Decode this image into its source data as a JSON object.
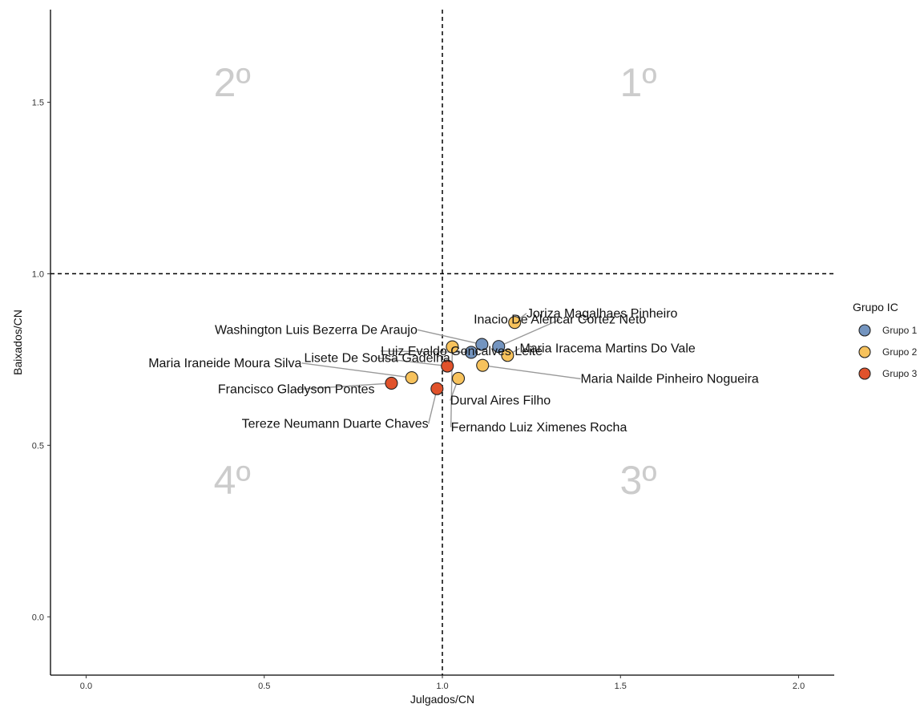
{
  "chart_data": {
    "type": "scatter",
    "xlabel": "Julgados/CN",
    "ylabel": "Baixados/CN",
    "xlim": [
      -0.1,
      2.1
    ],
    "ylim": [
      -0.17,
      1.77
    ],
    "x_ticks": [
      0.0,
      0.5,
      1.0,
      1.5,
      2.0
    ],
    "x_tick_labels": [
      "0.0",
      "0.5",
      "1.0",
      "1.5",
      "2.0"
    ],
    "y_ticks": [
      0.0,
      0.5,
      1.0,
      1.5
    ],
    "y_tick_labels": [
      "0.0",
      "0.5",
      "1.0",
      "1.5"
    ],
    "reference_lines": {
      "x": 1.0,
      "y": 1.0,
      "style": "dashed"
    },
    "grid": false,
    "quadrants": [
      {
        "label": "1º",
        "x": 1.55,
        "y": 1.56
      },
      {
        "label": "2º",
        "x": 0.41,
        "y": 1.56
      },
      {
        "label": "3º",
        "x": 1.55,
        "y": 0.4
      },
      {
        "label": "4º",
        "x": 0.41,
        "y": 0.4
      }
    ],
    "legend": {
      "title": "Grupo IC",
      "position": "right",
      "entries": [
        {
          "name": "Grupo 1",
          "color": "#7394bf"
        },
        {
          "name": "Grupo 2",
          "color": "#f7c25c"
        },
        {
          "name": "Grupo 3",
          "color": "#e0522b"
        }
      ]
    },
    "points": [
      {
        "name": "Inacio De Alencar Cortez Neto",
        "group": "Grupo 1",
        "x": 1.158,
        "y": 0.788,
        "label_x": 1.33,
        "label_y": 0.855,
        "anchor": "middle"
      },
      {
        "name": "Washington Luis Bezerra De Araujo",
        "group": "Grupo 1",
        "x": 1.111,
        "y": 0.794,
        "label_x": 0.93,
        "label_y": 0.825,
        "anchor": "end"
      },
      {
        "name": "Luiz Evaldo Goncalves Leite",
        "group": "Grupo 1",
        "x": 1.081,
        "y": 0.771,
        "label_x": 0.827,
        "label_y": 0.763,
        "anchor": "start"
      },
      {
        "name": "Joriza Magalhaes Pinheiro",
        "group": "Grupo 2",
        "x": 1.203,
        "y": 0.858,
        "label_x": 1.236,
        "label_y": 0.873,
        "anchor": "start"
      },
      {
        "name": "Maria Iracema Martins Do Vale",
        "group": "Grupo 2",
        "x": 1.183,
        "y": 0.762,
        "label_x": 1.217,
        "label_y": 0.771,
        "anchor": "start"
      },
      {
        "name": "Maria Nailde Pinheiro Nogueira",
        "group": "Grupo 2",
        "x": 1.113,
        "y": 0.733,
        "label_x": 1.388,
        "label_y": 0.682,
        "anchor": "start"
      },
      {
        "name": "Durval Aires Filho",
        "group": "Grupo 2",
        "x": 1.045,
        "y": 0.695,
        "label_x": 1.022,
        "label_y": 0.619,
        "anchor": "start"
      },
      {
        "name": "Fernando Luiz Ximenes Rocha",
        "group": "Grupo 2",
        "x": 1.028,
        "y": 0.787,
        "label_x": 1.024,
        "label_y": 0.541,
        "anchor": "start"
      },
      {
        "name": "Maria Iraneide Moura Silva",
        "group": "Grupo 2",
        "x": 0.914,
        "y": 0.697,
        "label_x": 0.605,
        "label_y": 0.728,
        "anchor": "end"
      },
      {
        "name": "Lisete De Sousa Gadelha",
        "group": "Grupo 3",
        "x": 1.014,
        "y": 0.731,
        "label_x": 0.817,
        "label_y": 0.743,
        "anchor": "middle"
      },
      {
        "name": "Francisco Gladyson Pontes",
        "group": "Grupo 3",
        "x": 0.857,
        "y": 0.681,
        "label_x": 0.59,
        "label_y": 0.651,
        "anchor": "middle"
      },
      {
        "name": "Tereze Neumann Duarte Chaves",
        "group": "Grupo 3",
        "x": 0.985,
        "y": 0.665,
        "label_x": 0.961,
        "label_y": 0.551,
        "anchor": "end"
      }
    ]
  }
}
